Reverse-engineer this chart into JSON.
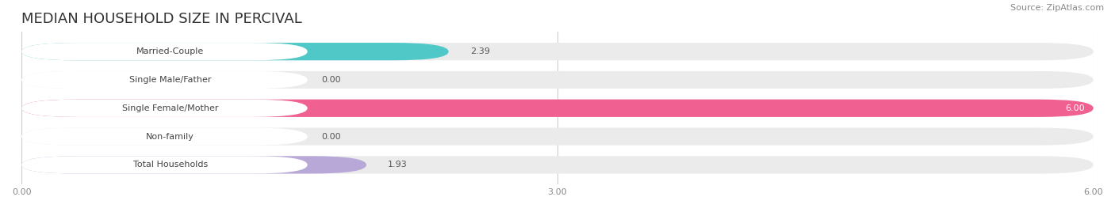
{
  "title": "MEDIAN HOUSEHOLD SIZE IN PERCIVAL",
  "source": "Source: ZipAtlas.com",
  "categories": [
    "Married-Couple",
    "Single Male/Father",
    "Single Female/Mother",
    "Non-family",
    "Total Households"
  ],
  "values": [
    2.39,
    0.0,
    6.0,
    0.0,
    1.93
  ],
  "bar_colors": [
    "#50c8c8",
    "#a0b8e8",
    "#f06090",
    "#f5c896",
    "#b8a8d8"
  ],
  "bar_bg_color": "#ebebeb",
  "xlim": [
    0,
    6.0
  ],
  "xticks": [
    0.0,
    3.0,
    6.0
  ],
  "xtick_labels": [
    "0.00",
    "3.00",
    "6.00"
  ],
  "title_fontsize": 13,
  "source_fontsize": 8,
  "label_fontsize": 8,
  "value_fontsize": 8,
  "bar_height": 0.62,
  "background_color": "#ffffff",
  "grid_color": "#cccccc",
  "label_bg_color": "#ffffff"
}
